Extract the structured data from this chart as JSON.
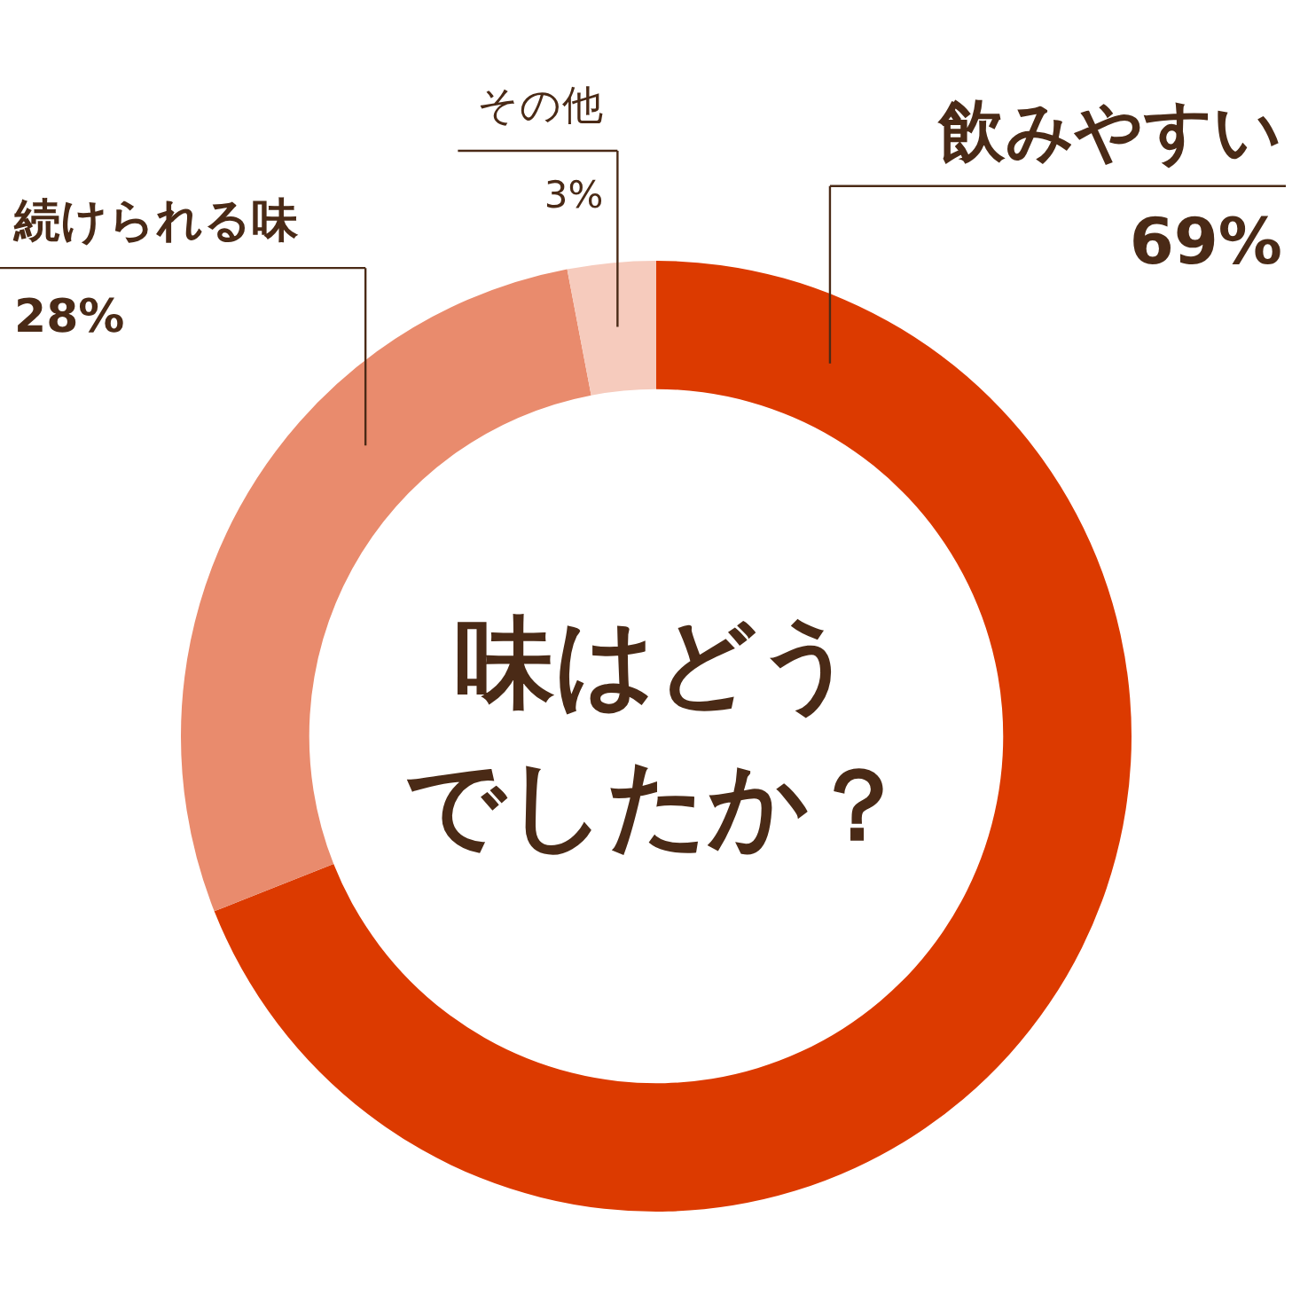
{
  "chart_data": {
    "type": "donut",
    "title": "味はどうでしたか？",
    "categories": [
      "飲みやすい",
      "続けられる味",
      "その他"
    ],
    "values": [
      69,
      28,
      3
    ],
    "colors": [
      "#dc3a00",
      "#e98b6d",
      "#f6cbbd"
    ],
    "value_labels": [
      "69%",
      "28%",
      "3%"
    ],
    "legend": false
  }
}
